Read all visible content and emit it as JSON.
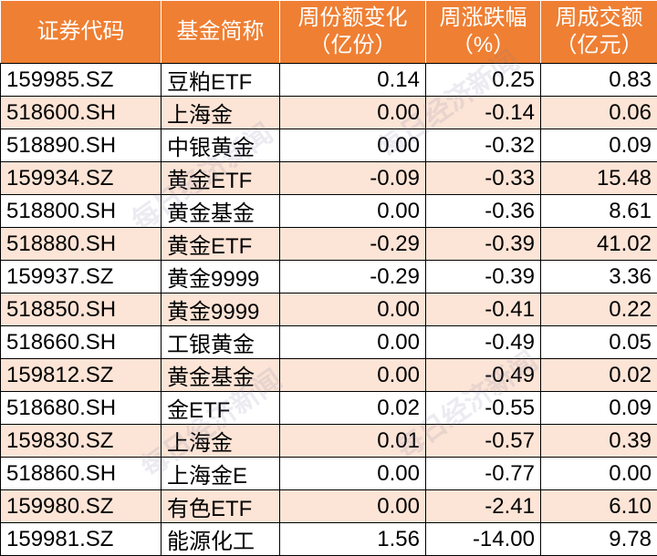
{
  "table": {
    "header": [
      [
        "证券代码"
      ],
      [
        "基金简称"
      ],
      [
        "周份额变化",
        "（亿份）"
      ],
      [
        "周涨跌幅",
        "（%）"
      ],
      [
        "周成交额",
        "（亿元）"
      ]
    ],
    "rows": [
      [
        "159985.SZ",
        "豆粕ETF",
        "0.14",
        "0.25",
        "0.83"
      ],
      [
        "518600.SH",
        "上海金",
        "0.00",
        "-0.14",
        "0.06"
      ],
      [
        "518890.SH",
        "中银黄金",
        "0.00",
        "-0.32",
        "0.09"
      ],
      [
        "159934.SZ",
        "黄金ETF",
        "-0.09",
        "-0.33",
        "15.48"
      ],
      [
        "518800.SH",
        "黄金基金",
        "0.00",
        "-0.36",
        "8.61"
      ],
      [
        "518880.SH",
        "黄金ETF",
        "-0.29",
        "-0.39",
        "41.02"
      ],
      [
        "159937.SZ",
        "黄金9999",
        "-0.29",
        "-0.39",
        "3.36"
      ],
      [
        "518850.SH",
        "黄金9999",
        "0.00",
        "-0.41",
        "0.22"
      ],
      [
        "518660.SH",
        "工银黄金",
        "0.00",
        "-0.49",
        "0.05"
      ],
      [
        "159812.SZ",
        "黄金基金",
        "0.00",
        "-0.49",
        "0.02"
      ],
      [
        "518680.SH",
        "金ETF",
        "0.02",
        "-0.55",
        "0.09"
      ],
      [
        "159830.SZ",
        "上海金",
        "0.01",
        "-0.57",
        "0.39"
      ],
      [
        "518860.SH",
        "上海金E",
        "0.00",
        "-0.77",
        "0.00"
      ],
      [
        "159980.SZ",
        "有色ETF",
        "0.00",
        "-2.41",
        "6.10"
      ],
      [
        "159981.SZ",
        "能源化工",
        "1.56",
        "-14.00",
        "9.78"
      ]
    ]
  },
  "watermark": "每日经济新闻"
}
